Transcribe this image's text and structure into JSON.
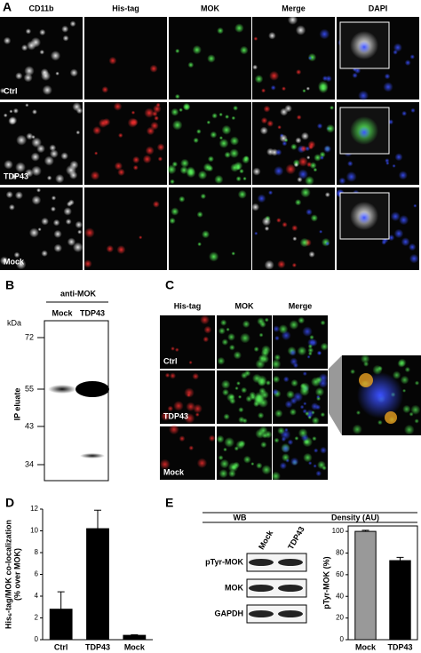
{
  "panels": {
    "a": {
      "label": "A",
      "columns": [
        "CD11b",
        "His-tag",
        "MOK",
        "Merge",
        "DAPI"
      ],
      "rows": [
        "Ctrl",
        "TDP43",
        "Mock"
      ]
    },
    "b": {
      "label": "B",
      "antibody": "anti-MOK",
      "unit": "kDa",
      "lanes": [
        "Mock",
        "TDP43"
      ],
      "markers": [
        72,
        55,
        43,
        34
      ],
      "ylabel": "IP eluate"
    },
    "c": {
      "label": "C",
      "columns": [
        "His-tag",
        "MOK",
        "Merge"
      ],
      "rows": [
        "Ctrl",
        "TDP43",
        "Mock"
      ]
    },
    "d": {
      "label": "D"
    },
    "e": {
      "label": "E",
      "headers": [
        "WB",
        "Density (AU)"
      ],
      "lanes": [
        "Mock",
        "TDP43"
      ],
      "rows": [
        "pTyr-MOK",
        "MOK",
        "GAPDH"
      ]
    }
  },
  "chart_data": [
    {
      "type": "bar",
      "ylabel": [
        "His₆-tag/MOK co-localization",
        "(% over MOK)"
      ],
      "categories": [
        "Ctrl",
        "TDP43",
        "Mock"
      ],
      "values": [
        2.8,
        10.2,
        0.4
      ],
      "errors": [
        1.6,
        1.7,
        0.05
      ],
      "colors": [
        "#000000",
        "#000000",
        "#000000"
      ],
      "ylim": [
        0,
        12
      ],
      "yticks": [
        0,
        2,
        4,
        6,
        8,
        10,
        12
      ],
      "frame": "axes"
    },
    {
      "type": "bar",
      "ylabel": [
        "pTyr-MOK (%)"
      ],
      "categories": [
        "Mock",
        "TDP43"
      ],
      "values": [
        100,
        73
      ],
      "errors": [
        1,
        3
      ],
      "colors": [
        "#999999",
        "#000000"
      ],
      "ylim": [
        0,
        105
      ],
      "yticks": [
        0,
        20,
        40,
        60,
        80,
        100
      ],
      "frame": "box"
    }
  ]
}
